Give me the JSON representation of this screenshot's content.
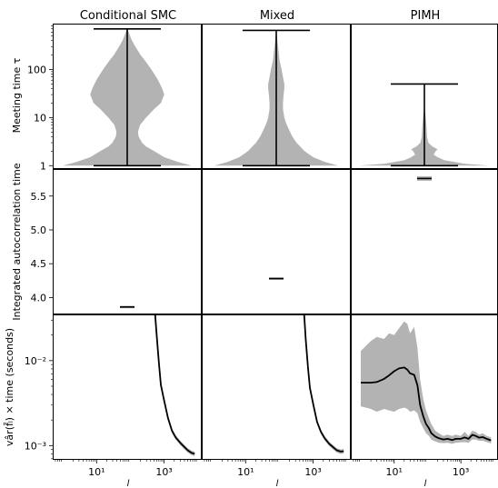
{
  "figure": {
    "column_titles": [
      "Conditional SMC",
      "Mixed",
      "PIMH"
    ],
    "row_ylabels": [
      "Meeting time τ",
      "Integrated autocorrelation time",
      "vâr(f̄ₗ) × time (seconds)"
    ],
    "xlabel": "l"
  },
  "chart_data": [
    {
      "type": "violin",
      "row": "meeting_time",
      "ylabel": "Meeting time τ",
      "yscale": "log",
      "ylim": [
        0.85,
        900
      ],
      "yticks": [
        1,
        10,
        100
      ],
      "yticklabels": [
        "1",
        "10",
        "100"
      ],
      "color": "#b3b3b3",
      "series": [
        {
          "name": "Conditional SMC",
          "min": 1,
          "max": 700,
          "density": [
            [
              1,
              0.96
            ],
            [
              1.2,
              0.75
            ],
            [
              1.5,
              0.55
            ],
            [
              2,
              0.4
            ],
            [
              2.5,
              0.28
            ],
            [
              3,
              0.22
            ],
            [
              4,
              0.17
            ],
            [
              5,
              0.16
            ],
            [
              7,
              0.19
            ],
            [
              10,
              0.28
            ],
            [
              15,
              0.4
            ],
            [
              20,
              0.5
            ],
            [
              30,
              0.55
            ],
            [
              40,
              0.52
            ],
            [
              60,
              0.46
            ],
            [
              100,
              0.36
            ],
            [
              150,
              0.27
            ],
            [
              200,
              0.2
            ],
            [
              300,
              0.12
            ],
            [
              400,
              0.07
            ],
            [
              550,
              0.03
            ],
            [
              700,
              0.005
            ]
          ]
        },
        {
          "name": "Mixed",
          "min": 1,
          "max": 650,
          "density": [
            [
              1,
              0.92
            ],
            [
              1.2,
              0.72
            ],
            [
              1.5,
              0.55
            ],
            [
              2,
              0.42
            ],
            [
              3,
              0.3
            ],
            [
              4,
              0.24
            ],
            [
              6,
              0.18
            ],
            [
              8,
              0.14
            ],
            [
              10,
              0.12
            ],
            [
              15,
              0.1
            ],
            [
              20,
              0.1
            ],
            [
              30,
              0.11
            ],
            [
              40,
              0.12
            ],
            [
              50,
              0.12
            ],
            [
              70,
              0.1
            ],
            [
              100,
              0.08
            ],
            [
              150,
              0.05
            ],
            [
              200,
              0.04
            ],
            [
              300,
              0.025
            ],
            [
              500,
              0.01
            ],
            [
              650,
              0.003
            ]
          ]
        },
        {
          "name": "PIMH",
          "min": 1,
          "max": 50,
          "density": [
            [
              1,
              0.98
            ],
            [
              1.1,
              0.6
            ],
            [
              1.3,
              0.3
            ],
            [
              1.5,
              0.2
            ],
            [
              1.7,
              0.14
            ],
            [
              2,
              0.17
            ],
            [
              2.2,
              0.2
            ],
            [
              2.5,
              0.12
            ],
            [
              3,
              0.06
            ],
            [
              4,
              0.04
            ],
            [
              5,
              0.035
            ],
            [
              7,
              0.03
            ],
            [
              10,
              0.02
            ],
            [
              14,
              0.01
            ],
            [
              20,
              0.004
            ],
            [
              30,
              0.002
            ],
            [
              50,
              0.001
            ]
          ]
        }
      ]
    },
    {
      "type": "scatter",
      "row": "integrated_autocorrelation_time",
      "ylabel": "Integrated autocorrelation time",
      "ylim": [
        3.75,
        5.9
      ],
      "yticks": [
        4.0,
        4.5,
        5.0,
        5.5
      ],
      "yticklabels": [
        "4.0",
        "4.5",
        "5.0",
        "5.5"
      ],
      "series": [
        {
          "name": "Conditional SMC",
          "x": 100,
          "y": 3.86,
          "band": [
            3.855,
            3.865
          ]
        },
        {
          "name": "Mixed",
          "x": 100,
          "y": 4.28,
          "band": [
            4.275,
            4.285
          ]
        },
        {
          "name": "PIMH",
          "x": 100,
          "y": 5.76,
          "band": [
            5.74,
            5.78
          ]
        }
      ]
    },
    {
      "type": "line",
      "row": "inefficiency",
      "ylabel": "vâr(f̄ₗ) × time (seconds)",
      "xlabel": "l",
      "xscale": "log",
      "yscale": "log",
      "xlim": [
        0.5,
        13000
      ],
      "ylim": [
        0.00068,
        0.035
      ],
      "xticks": [
        10,
        1000
      ],
      "xticklabels": [
        "10¹",
        "10³"
      ],
      "yticks": [
        0.001,
        0.01
      ],
      "yticklabels": [
        "10⁻³",
        "10⁻²"
      ],
      "line_color": "#000000",
      "band_color": "#b3b3b3",
      "series": [
        {
          "name": "Conditional SMC",
          "x": [
            540,
            600,
            700,
            800,
            1000,
            1300,
            1700,
            2200,
            3000,
            4000,
            5000,
            6500,
            8000
          ],
          "y": [
            0.035,
            0.02,
            0.0093,
            0.0052,
            0.0034,
            0.0021,
            0.0015,
            0.00125,
            0.00108,
            0.00096,
            0.00088,
            0.00082,
            0.0008
          ],
          "band": 0.06
        },
        {
          "name": "Mixed",
          "x": [
            540,
            600,
            700,
            800,
            1000,
            1300,
            1700,
            2200,
            3000,
            4000,
            5000,
            6500,
            8000
          ],
          "y": [
            0.035,
            0.018,
            0.0083,
            0.0048,
            0.0031,
            0.0019,
            0.00145,
            0.00122,
            0.00105,
            0.00095,
            0.00088,
            0.00085,
            0.00086
          ],
          "band": 0.06
        },
        {
          "name": "PIMH",
          "x": [
            1,
            2,
            3,
            5,
            7,
            10,
            14,
            20,
            25,
            30,
            40,
            50,
            60,
            75,
            90,
            110,
            130,
            170,
            220,
            300,
            400,
            550,
            700,
            1000,
            1300,
            1700,
            2200,
            2800,
            3500,
            4500,
            6000,
            8000
          ],
          "y": [
            0.0055,
            0.0055,
            0.0056,
            0.0061,
            0.0067,
            0.0075,
            0.0081,
            0.0083,
            0.0078,
            0.0071,
            0.0068,
            0.0051,
            0.003,
            0.0022,
            0.0018,
            0.0016,
            0.0014,
            0.00128,
            0.00122,
            0.00118,
            0.0012,
            0.00116,
            0.0012,
            0.0012,
            0.00125,
            0.0012,
            0.00134,
            0.0013,
            0.00124,
            0.00126,
            0.0012,
            0.00115
          ],
          "band_upper": [
            0.013,
            0.017,
            0.019,
            0.018,
            0.021,
            0.02,
            0.024,
            0.029,
            0.027,
            0.021,
            0.025,
            0.014,
            0.006,
            0.0035,
            0.0026,
            0.0021,
            0.0018,
            0.0015,
            0.0014,
            0.0013,
            0.00135,
            0.0013,
            0.00135,
            0.0013,
            0.00145,
            0.0013,
            0.0015,
            0.00145,
            0.00135,
            0.0014,
            0.0013,
            0.00125
          ],
          "band_lower": [
            0.0029,
            0.0027,
            0.0025,
            0.0027,
            0.0026,
            0.0025,
            0.0027,
            0.0028,
            0.0027,
            0.0025,
            0.0026,
            0.0024,
            0.0019,
            0.0016,
            0.0014,
            0.0013,
            0.00118,
            0.00112,
            0.00108,
            0.00107,
            0.00108,
            0.00105,
            0.00108,
            0.00109,
            0.0011,
            0.00108,
            0.00118,
            0.00118,
            0.00114,
            0.00114,
            0.0011,
            0.00106
          ]
        }
      ]
    }
  ]
}
